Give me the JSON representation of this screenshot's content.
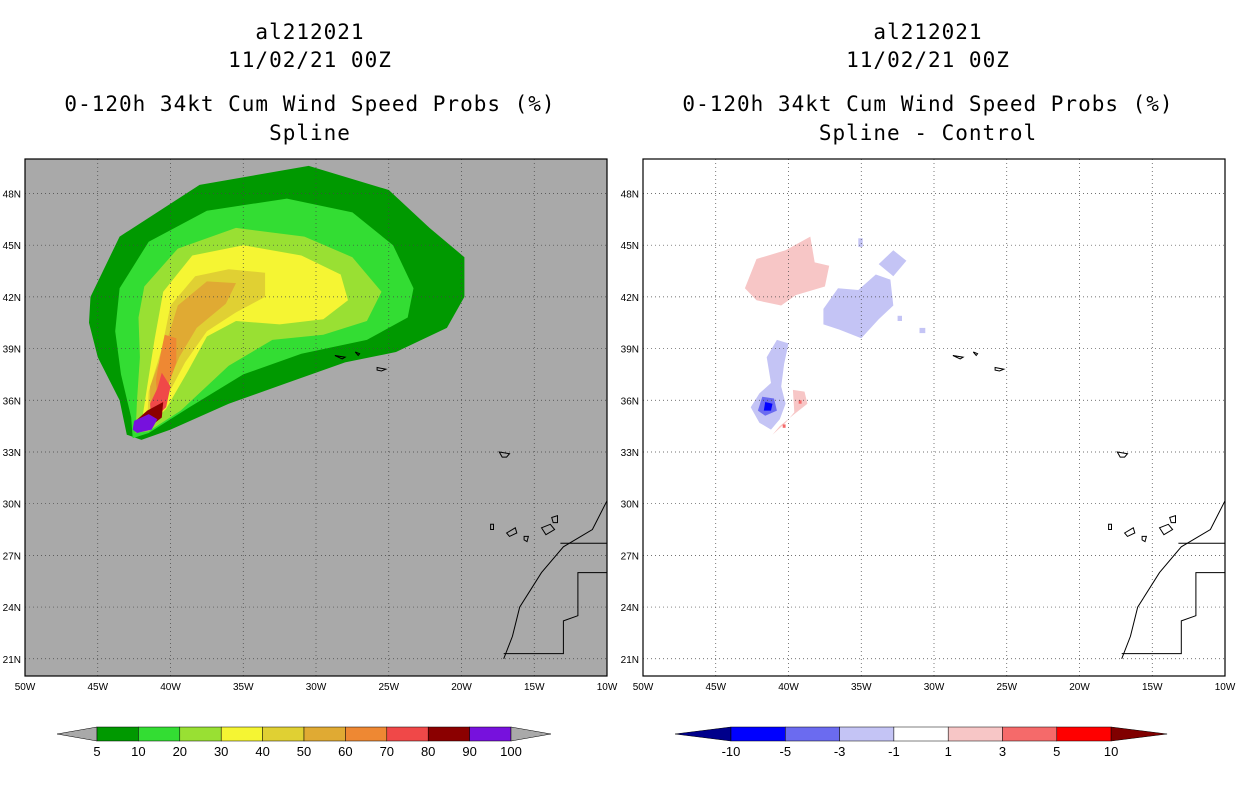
{
  "panels": [
    {
      "title_lines": [
        "al212021",
        "11/02/21 00Z",
        "0-120h 34kt Cum Wind Speed Probs (%)",
        "Spline"
      ]
    },
    {
      "title_lines": [
        "al212021",
        "11/02/21 00Z",
        "0-120h 34kt Cum Wind Speed Probs (%)",
        "Spline - Control"
      ]
    }
  ],
  "chart_data": [
    {
      "type": "heatmap",
      "title": "0-120h 34kt Cum Wind Speed Probs (%) - Spline",
      "storm": "al212021",
      "valid": "11/02/21 00Z",
      "xlim": [
        -50,
        -10
      ],
      "ylim": [
        20,
        50
      ],
      "xticks": [
        -50,
        -45,
        -40,
        -35,
        -30,
        -25,
        -20,
        -15,
        -10
      ],
      "xtick_labels": [
        "50W",
        "45W",
        "40W",
        "35W",
        "30W",
        "25W",
        "20W",
        "15W",
        "10W"
      ],
      "yticks": [
        21,
        24,
        27,
        30,
        33,
        36,
        39,
        42,
        45,
        48
      ],
      "ytick_labels": [
        "21N",
        "24N",
        "27N",
        "30N",
        "33N",
        "36N",
        "39N",
        "42N",
        "45N",
        "48N"
      ],
      "grid": true,
      "background_color": "#a9a9a9",
      "colorbar": {
        "levels": [
          5,
          10,
          20,
          30,
          40,
          50,
          60,
          70,
          80,
          90,
          100
        ],
        "labels": [
          "5",
          "10",
          "20",
          "30",
          "40",
          "50",
          "60",
          "70",
          "80",
          "90",
          "100"
        ],
        "colors": [
          "#009900",
          "#33dd33",
          "#99e033",
          "#f5f533",
          "#e0d033",
          "#e0aa33",
          "#ee8833",
          "#f04848",
          "#8b0000",
          "#7711dd"
        ],
        "under_color": "#a9a9a9",
        "over_color": "#a9a9a9"
      },
      "contours": [
        {
          "level": 5,
          "color": "#009900",
          "polygon": [
            [
              -45.5,
              42
            ],
            [
              -43.5,
              45.5
            ],
            [
              -38,
              48.5
            ],
            [
              -30.5,
              49.6
            ],
            [
              -25,
              48.2
            ],
            [
              -22.2,
              46
            ],
            [
              -19.8,
              44.3
            ],
            [
              -19.8,
              42
            ],
            [
              -21,
              40.2
            ],
            [
              -24.5,
              38.8
            ],
            [
              -28,
              38.2
            ],
            [
              -32,
              37
            ],
            [
              -36,
              35.8
            ],
            [
              -40,
              34.3
            ],
            [
              -42,
              33.7
            ],
            [
              -43,
              34
            ],
            [
              -43.5,
              36
            ],
            [
              -45,
              38.5
            ],
            [
              -45.6,
              40.5
            ]
          ]
        },
        {
          "level": 10,
          "color": "#33dd33",
          "polygon": [
            [
              -43.5,
              42.5
            ],
            [
              -41.5,
              45.2
            ],
            [
              -37.5,
              47
            ],
            [
              -32,
              47.7
            ],
            [
              -27.5,
              46.9
            ],
            [
              -24.7,
              45
            ],
            [
              -23.3,
              42.5
            ],
            [
              -23.7,
              40.8
            ],
            [
              -26.5,
              39.5
            ],
            [
              -31,
              38.7
            ],
            [
              -35,
              37.5
            ],
            [
              -38.7,
              35.6
            ],
            [
              -41.5,
              34.1
            ],
            [
              -42.6,
              33.8
            ],
            [
              -42.7,
              35
            ],
            [
              -43.4,
              37.5
            ],
            [
              -43.8,
              40
            ]
          ]
        },
        {
          "level": 20,
          "color": "#99e033",
          "polygon": [
            [
              -41.8,
              42.6
            ],
            [
              -39.5,
              44.8
            ],
            [
              -35.5,
              46
            ],
            [
              -30.8,
              45.5
            ],
            [
              -27.5,
              44.3
            ],
            [
              -25.5,
              42.3
            ],
            [
              -26.5,
              40.6
            ],
            [
              -29.5,
              39.8
            ],
            [
              -33,
              39.5
            ],
            [
              -36,
              38
            ],
            [
              -39.3,
              35.4
            ],
            [
              -41.5,
              34.2
            ],
            [
              -42.4,
              34.1
            ],
            [
              -42.3,
              36
            ],
            [
              -42.1,
              38.5
            ],
            [
              -42.2,
              40.8
            ]
          ]
        },
        {
          "level": 30,
          "color": "#f5f533",
          "polygon": [
            [
              -40.5,
              42.3
            ],
            [
              -38.5,
              44.4
            ],
            [
              -35,
              45
            ],
            [
              -31,
              44.4
            ],
            [
              -28.3,
              43.3
            ],
            [
              -27.8,
              41.8
            ],
            [
              -29.5,
              40.7
            ],
            [
              -32.5,
              40.4
            ],
            [
              -35.5,
              40.6
            ],
            [
              -37.5,
              39.7
            ],
            [
              -38.8,
              37.7
            ],
            [
              -40.3,
              35.5
            ],
            [
              -41.6,
              34.4
            ],
            [
              -42,
              34.6
            ],
            [
              -41.6,
              36.8
            ],
            [
              -41.1,
              39.5
            ]
          ]
        },
        {
          "level": 40,
          "color": "#e0d033",
          "polygon": [
            [
              -40,
              41.5
            ],
            [
              -38.3,
              43.2
            ],
            [
              -36,
              43.6
            ],
            [
              -33.5,
              43.4
            ],
            [
              -33.5,
              42
            ],
            [
              -35.5,
              41.1
            ],
            [
              -37.5,
              40
            ],
            [
              -39,
              38.2
            ],
            [
              -40.5,
              35.8
            ],
            [
              -41.6,
              34.8
            ],
            [
              -41.5,
              36.5
            ],
            [
              -40.6,
              39
            ]
          ]
        },
        {
          "level": 50,
          "color": "#e0aa33",
          "polygon": [
            [
              -39.5,
              41.5
            ],
            [
              -37.5,
              42.9
            ],
            [
              -35.5,
              42.8
            ],
            [
              -36.2,
              41.6
            ],
            [
              -38.2,
              40.2
            ],
            [
              -39.4,
              38.5
            ],
            [
              -40.4,
              36.5
            ],
            [
              -41.4,
              35
            ],
            [
              -41.4,
              36.8
            ],
            [
              -40.3,
              39.3
            ]
          ]
        },
        {
          "level": 60,
          "color": "#ee8833",
          "polygon": [
            [
              -40.4,
              39.8
            ],
            [
              -39.6,
              39.6
            ],
            [
              -39.6,
              38.2
            ],
            [
              -40.3,
              36.5
            ],
            [
              -40.9,
              35.8
            ],
            [
              -41,
              37.2
            ],
            [
              -40.7,
              38.6
            ]
          ]
        },
        {
          "level": 70,
          "color": "#f04848",
          "polygon": [
            [
              -40.6,
              37.6
            ],
            [
              -40,
              36.8
            ],
            [
              -40.3,
              35.6
            ],
            [
              -41.3,
              34.8
            ],
            [
              -41.4,
              35.8
            ],
            [
              -40.9,
              36.7
            ]
          ]
        },
        {
          "level": 80,
          "color": "#8b0000",
          "polygon": [
            [
              -41.6,
              35.4
            ],
            [
              -40.5,
              35.9
            ],
            [
              -40.6,
              35
            ],
            [
              -41.2,
              34.6
            ],
            [
              -42.2,
              34.3
            ],
            [
              -42.4,
              34.8
            ]
          ]
        },
        {
          "level": 90,
          "color": "#7711dd",
          "polygon": [
            [
              -42.5,
              34.8
            ],
            [
              -41.5,
              35.2
            ],
            [
              -40.9,
              34.9
            ],
            [
              -41.3,
              34.3
            ],
            [
              -42.3,
              34.1
            ],
            [
              -42.6,
              34.3
            ]
          ]
        }
      ]
    },
    {
      "type": "heatmap",
      "title": "0-120h 34kt Cum Wind Speed Probs (%) - Spline - Control",
      "storm": "al212021",
      "valid": "11/02/21 00Z",
      "xlim": [
        -50,
        -10
      ],
      "ylim": [
        20,
        50
      ],
      "xticks": [
        -50,
        -45,
        -40,
        -35,
        -30,
        -25,
        -20,
        -15,
        -10
      ],
      "xtick_labels": [
        "50W",
        "45W",
        "40W",
        "35W",
        "30W",
        "25W",
        "20W",
        "15W",
        "10W"
      ],
      "yticks": [
        21,
        24,
        27,
        30,
        33,
        36,
        39,
        42,
        45,
        48
      ],
      "ytick_labels": [
        "21N",
        "24N",
        "27N",
        "30N",
        "33N",
        "36N",
        "39N",
        "42N",
        "45N",
        "48N"
      ],
      "grid": true,
      "background_color": "#ffffff",
      "colorbar": {
        "levels": [
          -10,
          -5,
          -3,
          -1,
          1,
          3,
          5,
          10
        ],
        "labels": [
          "-10",
          "-5",
          "-3",
          "-1",
          "1",
          "3",
          "5",
          "10"
        ],
        "colors": [
          "#0000ff",
          "#6b6bf0",
          "#c4c4f5",
          "#ffffff",
          "#f7c6c6",
          "#f56a6a",
          "#ff0000"
        ],
        "under_color": "#00008b",
        "over_color": "#800000"
      },
      "contours": [
        {
          "level": 1,
          "color": "#f7c6c6",
          "polygon": [
            [
              -43,
              42.5
            ],
            [
              -42.2,
              44.2
            ],
            [
              -40.2,
              44.7
            ],
            [
              -38.5,
              45.5
            ],
            [
              -38.2,
              44
            ],
            [
              -37.2,
              43.8
            ],
            [
              -37.5,
              42.6
            ],
            [
              -39.5,
              42.1
            ],
            [
              -40.5,
              41.5
            ],
            [
              -42.2,
              41.8
            ]
          ]
        },
        {
          "level": -1,
          "color": "#c4c4f5",
          "polygon": [
            [
              -37.6,
              41.3
            ],
            [
              -36.6,
              42.5
            ],
            [
              -35.2,
              42.4
            ],
            [
              -34,
              43.3
            ],
            [
              -33,
              43
            ],
            [
              -32.8,
              41.5
            ],
            [
              -33.8,
              40.7
            ],
            [
              -35,
              39.6
            ],
            [
              -36.5,
              40.1
            ],
            [
              -37.6,
              40.4
            ]
          ]
        },
        {
          "level": -1,
          "color": "#c4c4f5",
          "polygon": [
            [
              -35.2,
              45.4
            ],
            [
              -34.9,
              45.4
            ],
            [
              -34.9,
              44.9
            ],
            [
              -35.2,
              44.9
            ]
          ]
        },
        {
          "level": -1,
          "color": "#c4c4f5",
          "polygon": [
            [
              -33.8,
              43.9
            ],
            [
              -32.8,
              44.7
            ],
            [
              -31.9,
              44.1
            ],
            [
              -32.8,
              43.2
            ]
          ]
        },
        {
          "level": -1,
          "color": "#c4c4f5",
          "polygon": [
            [
              -32.5,
              40.9
            ],
            [
              -32.2,
              40.9
            ],
            [
              -32.2,
              40.6
            ],
            [
              -32.5,
              40.6
            ]
          ]
        },
        {
          "level": -1,
          "color": "#c4c4f5",
          "polygon": [
            [
              -31,
              40.2
            ],
            [
              -30.6,
              40.2
            ],
            [
              -30.6,
              39.9
            ],
            [
              -31,
              39.9
            ]
          ]
        },
        {
          "level": -1,
          "color": "#c4c4f5",
          "polygon": [
            [
              -41.5,
              38.5
            ],
            [
              -40.8,
              39.5
            ],
            [
              -40,
              39.3
            ],
            [
              -40.3,
              38.1
            ],
            [
              -40.5,
              36.8
            ],
            [
              -40.2,
              35.8
            ],
            [
              -40.6,
              34.9
            ],
            [
              -41.2,
              34.3
            ],
            [
              -42,
              34.7
            ],
            [
              -42.6,
              35.6
            ],
            [
              -42,
              36.4
            ],
            [
              -41.2,
              37
            ]
          ]
        },
        {
          "level": 1,
          "color": "#f7c6c6",
          "polygon": [
            [
              -39.7,
              36.6
            ],
            [
              -38.9,
              36.5
            ],
            [
              -38.7,
              35.8
            ],
            [
              -39.6,
              35.2
            ],
            [
              -40.6,
              34.5
            ],
            [
              -41.1,
              34
            ],
            [
              -40.2,
              34.7
            ],
            [
              -39.6,
              35.3
            ]
          ]
        },
        {
          "level": -3,
          "color": "#6b6bf0",
          "polygon": [
            [
              -41.8,
              36.2
            ],
            [
              -41,
              36.1
            ],
            [
              -40.8,
              35.4
            ],
            [
              -41.6,
              35.1
            ],
            [
              -42.1,
              35.4
            ]
          ]
        },
        {
          "level": -5,
          "color": "#0000ff",
          "polygon": [
            [
              -41.6,
              35.9
            ],
            [
              -41.1,
              35.8
            ],
            [
              -41.2,
              35.4
            ],
            [
              -41.7,
              35.4
            ]
          ]
        },
        {
          "level": 3,
          "color": "#f56a6a",
          "polygon": [
            [
              -39.3,
              36
            ],
            [
              -39.1,
              36
            ],
            [
              -39.1,
              35.8
            ],
            [
              -39.3,
              35.8
            ]
          ]
        },
        {
          "level": 3,
          "color": "#f56a6a",
          "polygon": [
            [
              -40.4,
              34.6
            ],
            [
              -40.2,
              34.6
            ],
            [
              -40.2,
              34.4
            ],
            [
              -40.4,
              34.4
            ]
          ]
        }
      ]
    }
  ]
}
